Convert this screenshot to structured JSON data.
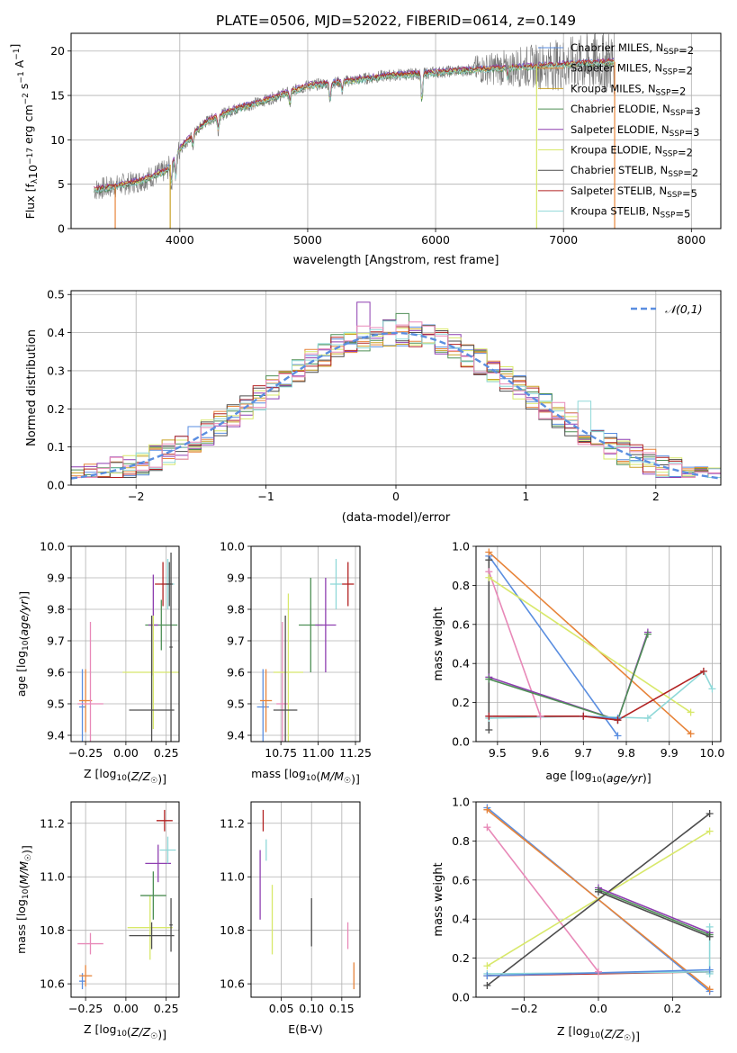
{
  "suptitle": "PLATE=0506, MJD=52022, FIBERID=0614, z=0.149",
  "colors": {
    "chabrier_miles": "#5a8ee0",
    "salpeter_miles": "#e7843a",
    "kroupa_miles": "#c9a227",
    "chabrier_elodie": "#4e8f55",
    "salpeter_elodie": "#8e3fb0",
    "kroupa_elodie": "#d8e86a",
    "chabrier_stelib": "#4d4d4d",
    "salpeter_stelib": "#b22222",
    "kroupa_stelib": "#8fd8d8",
    "pink": "#e889b8",
    "observed": "#777777"
  },
  "chart_data": [
    {
      "id": "spectrum",
      "type": "line",
      "xlabel": "wavelength [Angstrom, rest frame]",
      "ylabel": "Flux [f_λ 10^-17 erg cm^-2 s^-1 A^-1]",
      "xlim": [
        3150,
        8230
      ],
      "ylim": [
        0,
        22
      ],
      "xticks": [
        "4000",
        "5000",
        "6000",
        "7000",
        "8000"
      ],
      "yticks": [
        "0",
        "5",
        "10",
        "15",
        "20"
      ],
      "legend_position": "top-right",
      "legend": [
        {
          "imf": "Chabrier",
          "lib": "MILES",
          "n": "=2",
          "color_key": "chabrier_miles"
        },
        {
          "imf": "Salpeter",
          "lib": "MILES",
          "n": "=2",
          "color_key": "salpeter_miles"
        },
        {
          "imf": "Kroupa",
          "lib": "MILES",
          "n": "=2",
          "color_key": "kroupa_miles"
        },
        {
          "imf": "Chabrier",
          "lib": "ELODIE",
          "n": "=3",
          "color_key": "chabrier_elodie"
        },
        {
          "imf": "Salpeter",
          "lib": "ELODIE",
          "n": "=3",
          "color_key": "salpeter_elodie"
        },
        {
          "imf": "Kroupa",
          "lib": "ELODIE",
          "n": "=2",
          "color_key": "kroupa_elodie"
        },
        {
          "imf": "Chabrier",
          "lib": "STELIB",
          "n": "=2",
          "color_key": "chabrier_stelib"
        },
        {
          "imf": "Salpeter",
          "lib": "STELIB",
          "n": "=5",
          "color_key": "salpeter_stelib"
        },
        {
          "imf": "Kroupa",
          "lib": "STELIB",
          "n": "=5",
          "color_key": "kroupa_stelib"
        }
      ],
      "continuum": [
        [
          3300,
          4.3
        ],
        [
          3500,
          4.8
        ],
        [
          3700,
          5.4
        ],
        [
          3900,
          6.6
        ],
        [
          4000,
          9.0
        ],
        [
          4200,
          12.0
        ],
        [
          4400,
          13.3
        ],
        [
          4700,
          14.6
        ],
        [
          5000,
          16.1
        ],
        [
          5300,
          16.6
        ],
        [
          5600,
          17.2
        ],
        [
          6000,
          17.6
        ],
        [
          6400,
          18.0
        ],
        [
          6800,
          18.3
        ],
        [
          7100,
          18.6
        ],
        [
          7400,
          18.8
        ]
      ],
      "observed_range": [
        3330,
        7400
      ],
      "absorption_features": [
        [
          3934,
          -2.6
        ],
        [
          3969,
          -2.6
        ],
        [
          4102,
          -1.2
        ],
        [
          4300,
          -1.6
        ],
        [
          4861,
          -1.4
        ],
        [
          5175,
          -2.3
        ],
        [
          5270,
          -1.0
        ],
        [
          5893,
          -3.4
        ],
        [
          6563,
          -1.2
        ]
      ],
      "vertical_drops": [
        {
          "x": 3495,
          "color_key": "salpeter_miles"
        },
        {
          "x": 3925,
          "color_key": "kroupa_miles"
        },
        {
          "x": 6790,
          "color_key": "kroupa_elodie"
        },
        {
          "x": 7400,
          "color_key": "salpeter_miles"
        }
      ]
    },
    {
      "id": "residuals",
      "type": "line",
      "xlabel": "(data-model)/error",
      "ylabel": "Normed distribution",
      "xlim": [
        -2.5,
        2.5
      ],
      "ylim": [
        0,
        0.51
      ],
      "xticks": [
        "−2",
        "−1",
        "0",
        "1",
        "2"
      ],
      "yticks": [
        "0.0",
        "0.1",
        "0.2",
        "0.3",
        "0.4",
        "0.5"
      ],
      "legend_position": "top-right",
      "legend_label": "𝒩(0,1)",
      "bins": 50,
      "hist_series": [
        "chabrier_miles",
        "salpeter_miles",
        "kroupa_miles",
        "chabrier_elodie",
        "salpeter_elodie",
        "kroupa_elodie",
        "chabrier_stelib",
        "salpeter_stelib",
        "kroupa_stelib",
        "pink"
      ],
      "highlighted_bins": [
        {
          "x": -0.25,
          "value": 0.48,
          "color_key": "salpeter_elodie"
        },
        {
          "x": 0.05,
          "value": 0.45,
          "color_key": "chabrier_elodie"
        },
        {
          "x": 1.45,
          "value": 0.22,
          "color_key": "kroupa_stelib"
        }
      ]
    },
    {
      "id": "age_vs_Z",
      "type": "scatter",
      "xlabel": "Z [log10(Z/Z☉)]",
      "ylabel": "age  [log10(age/yr)]",
      "xlim": [
        -0.34,
        0.33
      ],
      "ylim": [
        9.38,
        10.0
      ],
      "xticks": [
        "−0.25",
        "0.00",
        "0.25"
      ],
      "yticks": [
        "9.4",
        "9.5",
        "9.6",
        "9.7",
        "9.8",
        "9.9",
        "10.0"
      ],
      "points": [
        {
          "x": -0.27,
          "xerr": 0.02,
          "y": 9.49,
          "yerr": 0.12,
          "color_key": "chabrier_miles"
        },
        {
          "x": -0.25,
          "xerr": 0.04,
          "y": 9.51,
          "yerr": 0.1,
          "color_key": "salpeter_miles"
        },
        {
          "x": -0.22,
          "xerr": 0.08,
          "y": 9.5,
          "yerr": 0.26,
          "color_key": "pink"
        },
        {
          "x": 0.22,
          "xerr": 0.1,
          "y": 9.75,
          "yerr": 0.08,
          "color_key": "chabrier_elodie"
        },
        {
          "x": 0.17,
          "xerr": 0.03,
          "y": 9.75,
          "yerr": 0.16,
          "color_key": "salpeter_elodie"
        },
        {
          "x": 0.17,
          "xerr": 0.19,
          "y": 9.6,
          "yerr": 0.18,
          "color_key": "kroupa_elodie"
        },
        {
          "x": 0.26,
          "xerr": 0.04,
          "y": 9.88,
          "yerr": 0.08,
          "color_key": "kroupa_stelib"
        },
        {
          "x": 0.23,
          "xerr": 0.05,
          "y": 9.88,
          "yerr": 0.07,
          "color_key": "salpeter_stelib"
        },
        {
          "x": 0.27,
          "xerr": 0.02,
          "y": 9.88,
          "yerr": 0.07,
          "color_key": "chabrier_stelib"
        },
        {
          "x": 0.16,
          "xerr": 0.14,
          "y": 9.48,
          "yerr": 0.3,
          "color_key": "chabrier_stelib"
        },
        {
          "x": 0.28,
          "xerr": 0.01,
          "y": 9.68,
          "yerr": 0.3,
          "color_key": "chabrier_stelib"
        }
      ]
    },
    {
      "id": "age_vs_mass",
      "type": "scatter",
      "xlabel": "mass [log10(M/M☉)]",
      "ylabel": "",
      "xlim": [
        10.55,
        11.28
      ],
      "ylim": [
        9.38,
        10.0
      ],
      "xticks": [
        "10.75",
        "11.00",
        "11.25"
      ],
      "yticks": [
        "9.4",
        "9.5",
        "9.6",
        "9.7",
        "9.8",
        "9.9",
        "10.0"
      ],
      "points": [
        {
          "x": 10.63,
          "xerr": 0.04,
          "y": 9.49,
          "yerr": 0.12,
          "color_key": "chabrier_miles"
        },
        {
          "x": 10.65,
          "xerr": 0.04,
          "y": 9.51,
          "yerr": 0.1,
          "color_key": "salpeter_miles"
        },
        {
          "x": 10.76,
          "xerr": 0.04,
          "y": 9.5,
          "yerr": 0.26,
          "color_key": "pink"
        },
        {
          "x": 10.8,
          "xerr": 0.1,
          "y": 9.6,
          "yerr": 0.25,
          "color_key": "kroupa_elodie"
        },
        {
          "x": 10.78,
          "xerr": 0.08,
          "y": 9.48,
          "yerr": 0.3,
          "color_key": "chabrier_stelib"
        },
        {
          "x": 10.95,
          "xerr": 0.08,
          "y": 9.75,
          "yerr": 0.15,
          "color_key": "chabrier_elodie"
        },
        {
          "x": 11.05,
          "xerr": 0.07,
          "y": 9.75,
          "yerr": 0.15,
          "color_key": "salpeter_elodie"
        },
        {
          "x": 11.12,
          "xerr": 0.04,
          "y": 9.88,
          "yerr": 0.08,
          "color_key": "kroupa_stelib"
        },
        {
          "x": 11.2,
          "xerr": 0.04,
          "y": 9.88,
          "yerr": 0.07,
          "color_key": "salpeter_stelib"
        }
      ]
    },
    {
      "id": "weights_vs_age",
      "type": "line",
      "xlabel": "age  [log10(age/yr)]",
      "ylabel": "mass weight",
      "xlim": [
        9.45,
        10.02
      ],
      "ylim": [
        0,
        1.0
      ],
      "xticks": [
        "9.5",
        "9.6",
        "9.7",
        "9.8",
        "9.9",
        "10.0"
      ],
      "yticks": [
        "0.0",
        "0.2",
        "0.4",
        "0.6",
        "0.8",
        "1.0"
      ],
      "series": [
        {
          "color_key": "chabrier_miles",
          "x": [
            9.48,
            9.78
          ],
          "y": [
            0.95,
            0.03
          ]
        },
        {
          "color_key": "salpeter_miles",
          "x": [
            9.48,
            9.95
          ],
          "y": [
            0.97,
            0.04
          ]
        },
        {
          "color_key": "pink",
          "x": [
            9.48,
            9.6
          ],
          "y": [
            0.87,
            0.13
          ]
        },
        {
          "color_key": "kroupa_elodie",
          "x": [
            9.48,
            9.95
          ],
          "y": [
            0.84,
            0.15
          ]
        },
        {
          "color_key": "chabrier_stelib",
          "x": [
            9.48,
            9.48
          ],
          "y": [
            0.93,
            0.06
          ]
        },
        {
          "color_key": "salpeter_elodie",
          "x": [
            9.48,
            9.78,
            9.85
          ],
          "y": [
            0.33,
            0.11,
            0.56
          ]
        },
        {
          "color_key": "chabrier_elodie",
          "x": [
            9.48,
            9.78,
            9.85
          ],
          "y": [
            0.32,
            0.11,
            0.55
          ]
        },
        {
          "color_key": "kroupa_stelib",
          "x": [
            9.48,
            9.7,
            9.85,
            9.98,
            10.0
          ],
          "y": [
            0.12,
            0.13,
            0.12,
            0.36,
            0.27
          ]
        },
        {
          "color_key": "chabrier_miles",
          "x": [
            9.48,
            9.7,
            9.78
          ],
          "y": [
            0.13,
            0.13,
            0.12
          ]
        },
        {
          "color_key": "salpeter_stelib",
          "x": [
            9.48,
            9.7,
            9.78,
            9.98
          ],
          "y": [
            0.13,
            0.13,
            0.11,
            0.36
          ]
        }
      ]
    },
    {
      "id": "mass_vs_Z",
      "type": "scatter",
      "xlabel": "Z [log10(Z/Z☉)]",
      "ylabel": "mass [log10(M/M☉)]",
      "xlim": [
        -0.34,
        0.33
      ],
      "ylim": [
        10.55,
        11.28
      ],
      "xticks": [
        "−0.25",
        "0.00",
        "0.25"
      ],
      "yticks": [
        "10.6",
        "10.8",
        "11.0",
        "11.2"
      ],
      "points": [
        {
          "x": -0.27,
          "xerr": 0.02,
          "y": 10.61,
          "yerr": 0.03,
          "color_key": "chabrier_miles"
        },
        {
          "x": -0.25,
          "xerr": 0.04,
          "y": 10.63,
          "yerr": 0.04,
          "color_key": "salpeter_miles"
        },
        {
          "x": -0.22,
          "xerr": 0.08,
          "y": 10.75,
          "yerr": 0.04,
          "color_key": "pink"
        },
        {
          "x": 0.15,
          "xerr": 0.14,
          "y": 10.81,
          "yerr": 0.12,
          "color_key": "kroupa_elodie"
        },
        {
          "x": 0.16,
          "xerr": 0.14,
          "y": 10.78,
          "yerr": 0.05,
          "color_key": "chabrier_stelib"
        },
        {
          "x": 0.17,
          "xerr": 0.08,
          "y": 10.93,
          "yerr": 0.09,
          "color_key": "chabrier_elodie"
        },
        {
          "x": 0.2,
          "xerr": 0.08,
          "y": 11.05,
          "yerr": 0.07,
          "color_key": "salpeter_elodie"
        },
        {
          "x": 0.26,
          "xerr": 0.05,
          "y": 11.1,
          "yerr": 0.05,
          "color_key": "kroupa_stelib"
        },
        {
          "x": 0.24,
          "xerr": 0.05,
          "y": 11.21,
          "yerr": 0.04,
          "color_key": "salpeter_stelib"
        },
        {
          "x": 0.28,
          "xerr": 0.01,
          "y": 10.82,
          "yerr": 0.1,
          "color_key": "chabrier_stelib"
        }
      ]
    },
    {
      "id": "mass_vs_ebv",
      "type": "scatter",
      "xlabel": "E(B-V)",
      "ylabel": "",
      "xlim": [
        0.0,
        0.18
      ],
      "ylim": [
        10.55,
        11.28
      ],
      "xticks": [
        "0.05",
        "0.10",
        "0.15"
      ],
      "yticks": [
        "10.6",
        "10.8",
        "11.0",
        "11.2"
      ],
      "points": [
        {
          "x": 0.015,
          "xerr": 0,
          "y": 10.97,
          "yerr": 0.13,
          "color_key": "salpeter_elodie"
        },
        {
          "x": 0.02,
          "xerr": 0,
          "y": 11.21,
          "yerr": 0.04,
          "color_key": "salpeter_stelib"
        },
        {
          "x": 0.025,
          "xerr": 0,
          "y": 11.1,
          "yerr": 0.04,
          "color_key": "kroupa_stelib"
        },
        {
          "x": 0.035,
          "xerr": 0,
          "y": 10.84,
          "yerr": 0.13,
          "color_key": "kroupa_elodie"
        },
        {
          "x": 0.1,
          "xerr": 0,
          "y": 10.83,
          "yerr": 0.09,
          "color_key": "chabrier_stelib"
        },
        {
          "x": 0.16,
          "xerr": 0,
          "y": 10.78,
          "yerr": 0.05,
          "color_key": "pink"
        },
        {
          "x": 0.17,
          "xerr": 0,
          "y": 10.63,
          "yerr": 0.05,
          "color_key": "salpeter_miles"
        }
      ]
    },
    {
      "id": "weights_vs_Z",
      "type": "line",
      "xlabel": "Z [log10(Z/Z☉)]",
      "ylabel": "mass weight",
      "xlim": [
        -0.33,
        0.33
      ],
      "ylim": [
        0,
        1.0
      ],
      "xticks": [
        "−0.2",
        "0.0",
        "0.2"
      ],
      "yticks": [
        "0.0",
        "0.2",
        "0.4",
        "0.6",
        "0.8",
        "1.0"
      ],
      "series": [
        {
          "color_key": "chabrier_miles",
          "x": [
            -0.3,
            0.3
          ],
          "y": [
            0.97,
            0.03
          ]
        },
        {
          "color_key": "salpeter_miles",
          "x": [
            -0.3,
            0.3
          ],
          "y": [
            0.96,
            0.04
          ]
        },
        {
          "color_key": "pink",
          "x": [
            -0.3,
            0.0
          ],
          "y": [
            0.87,
            0.13
          ]
        },
        {
          "color_key": "kroupa_elodie",
          "x": [
            -0.3,
            0.3
          ],
          "y": [
            0.16,
            0.85
          ]
        },
        {
          "color_key": "chabrier_stelib",
          "x": [
            -0.3,
            0.3
          ],
          "y": [
            0.06,
            0.94
          ]
        },
        {
          "color_key": "salpeter_elodie",
          "x": [
            0.0,
            0.3
          ],
          "y": [
            0.56,
            0.33
          ]
        },
        {
          "color_key": "chabrier_elodie",
          "x": [
            0.0,
            0.3
          ],
          "y": [
            0.55,
            0.32
          ]
        },
        {
          "color_key": "chabrier_stelib",
          "x": [
            0.0,
            0.3
          ],
          "y": [
            0.54,
            0.31
          ]
        },
        {
          "color_key": "salpeter_stelib",
          "x": [
            -0.3,
            0.3
          ],
          "y": [
            0.11,
            0.13
          ]
        },
        {
          "color_key": "kroupa_stelib",
          "x": [
            -0.3,
            0.3
          ],
          "y": [
            0.12,
            0.13
          ]
        },
        {
          "color_key": "kroupa_stelib",
          "x": [
            0.3,
            0.3
          ],
          "y": [
            0.12,
            0.36
          ]
        },
        {
          "color_key": "chabrier_miles",
          "x": [
            -0.3,
            0.3
          ],
          "y": [
            0.11,
            0.14
          ]
        }
      ]
    }
  ]
}
